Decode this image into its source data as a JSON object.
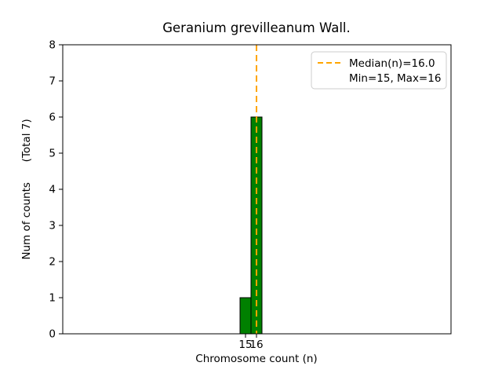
{
  "chart_data": {
    "type": "bar",
    "title": "Geranium grevilleanum Wall.",
    "xlabel": "Chromosome count (n)",
    "ylabel": "Num of counts      (Total 7)",
    "categories": [
      15,
      16
    ],
    "values": [
      1,
      6
    ],
    "total_counts": 7,
    "ylim": [
      0,
      8
    ],
    "yticks": [
      0,
      1,
      2,
      3,
      4,
      5,
      6,
      7,
      8
    ],
    "bar_color": "#008000",
    "bar_edge_color": "#000000",
    "median": {
      "x": 16.0,
      "color": "#ffa500",
      "style": "dashed"
    },
    "min": 15,
    "max": 16,
    "legend": {
      "position": "upper right",
      "entries": [
        "Median(n)=16.0",
        "Min=15, Max=16"
      ]
    },
    "grid": false
  }
}
